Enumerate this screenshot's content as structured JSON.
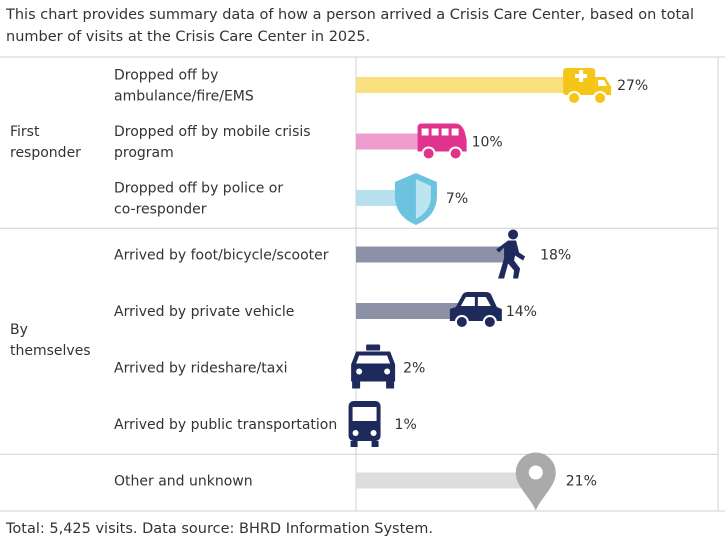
{
  "description": "This chart provides summary data of how a person arrived a Crisis Care Center, based on total number of visits at the Crisis Care Center in 2025.",
  "footnote": "Total: 5,425 visits. Data source: BHRD Information System.",
  "colors": {
    "ambulance": "#f9e07f",
    "ambulance_icon": "#f5c518",
    "mobile": "#ee9ccd",
    "mobile_icon": "#e0338e",
    "police": "#b6e0ee",
    "police_icon": "#6cc3e0",
    "themselves_bar": "#8d91a8",
    "themselves_icon": "#1f2a5c",
    "other_bar": "#dddddd",
    "other_icon": "#aaaaaa",
    "grid": "#d0d0d0"
  },
  "chart_data": {
    "type": "bar",
    "orientation": "horizontal",
    "xlim": [
      0,
      30
    ],
    "unit": "%",
    "groups": [
      {
        "label_lines": [
          "First",
          "responder"
        ],
        "rows": [
          {
            "label_lines": [
              "Dropped off by",
              "ambulance/fire/EMS"
            ],
            "value": 27,
            "value_label": "27%",
            "icon": "ambulance-icon",
            "bar_color": "#f9e07f",
            "icon_color": "#f5c518"
          },
          {
            "label_lines": [
              "Dropped off by mobile crisis",
              "program"
            ],
            "value": 10,
            "value_label": "10%",
            "icon": "van-icon",
            "bar_color": "#ee9ccd",
            "icon_color": "#e0338e"
          },
          {
            "label_lines": [
              "Dropped off by police or",
              "co-responder"
            ],
            "value": 7,
            "value_label": "7%",
            "icon": "shield-icon",
            "bar_color": "#b6e0ee",
            "icon_color": "#6cc3e0"
          }
        ]
      },
      {
        "label_lines": [
          "By",
          "themselves"
        ],
        "rows": [
          {
            "label_lines": [
              "Arrived by foot/bicycle/scooter"
            ],
            "value": 18,
            "value_label": "18%",
            "icon": "walking-person-icon",
            "bar_color": "#8d91a8",
            "icon_color": "#1f2a5c"
          },
          {
            "label_lines": [
              "Arrived by private vehicle"
            ],
            "value": 14,
            "value_label": "14%",
            "icon": "car-icon",
            "bar_color": "#8d91a8",
            "icon_color": "#1f2a5c"
          },
          {
            "label_lines": [
              "Arrived by rideshare/taxi"
            ],
            "value": 2,
            "value_label": "2%",
            "icon": "taxi-icon",
            "bar_color": "#8d91a8",
            "icon_color": "#1f2a5c"
          },
          {
            "label_lines": [
              "Arrived by public transportation"
            ],
            "value": 1,
            "value_label": "1%",
            "icon": "bus-icon",
            "bar_color": "#8d91a8",
            "icon_color": "#1f2a5c"
          }
        ]
      },
      {
        "label_lines": [],
        "rows": [
          {
            "label_lines": [
              "Other and unknown"
            ],
            "value": 21,
            "value_label": "21%",
            "icon": "map-pin-icon",
            "bar_color": "#dddddd",
            "icon_color": "#aaaaaa"
          }
        ]
      }
    ]
  }
}
